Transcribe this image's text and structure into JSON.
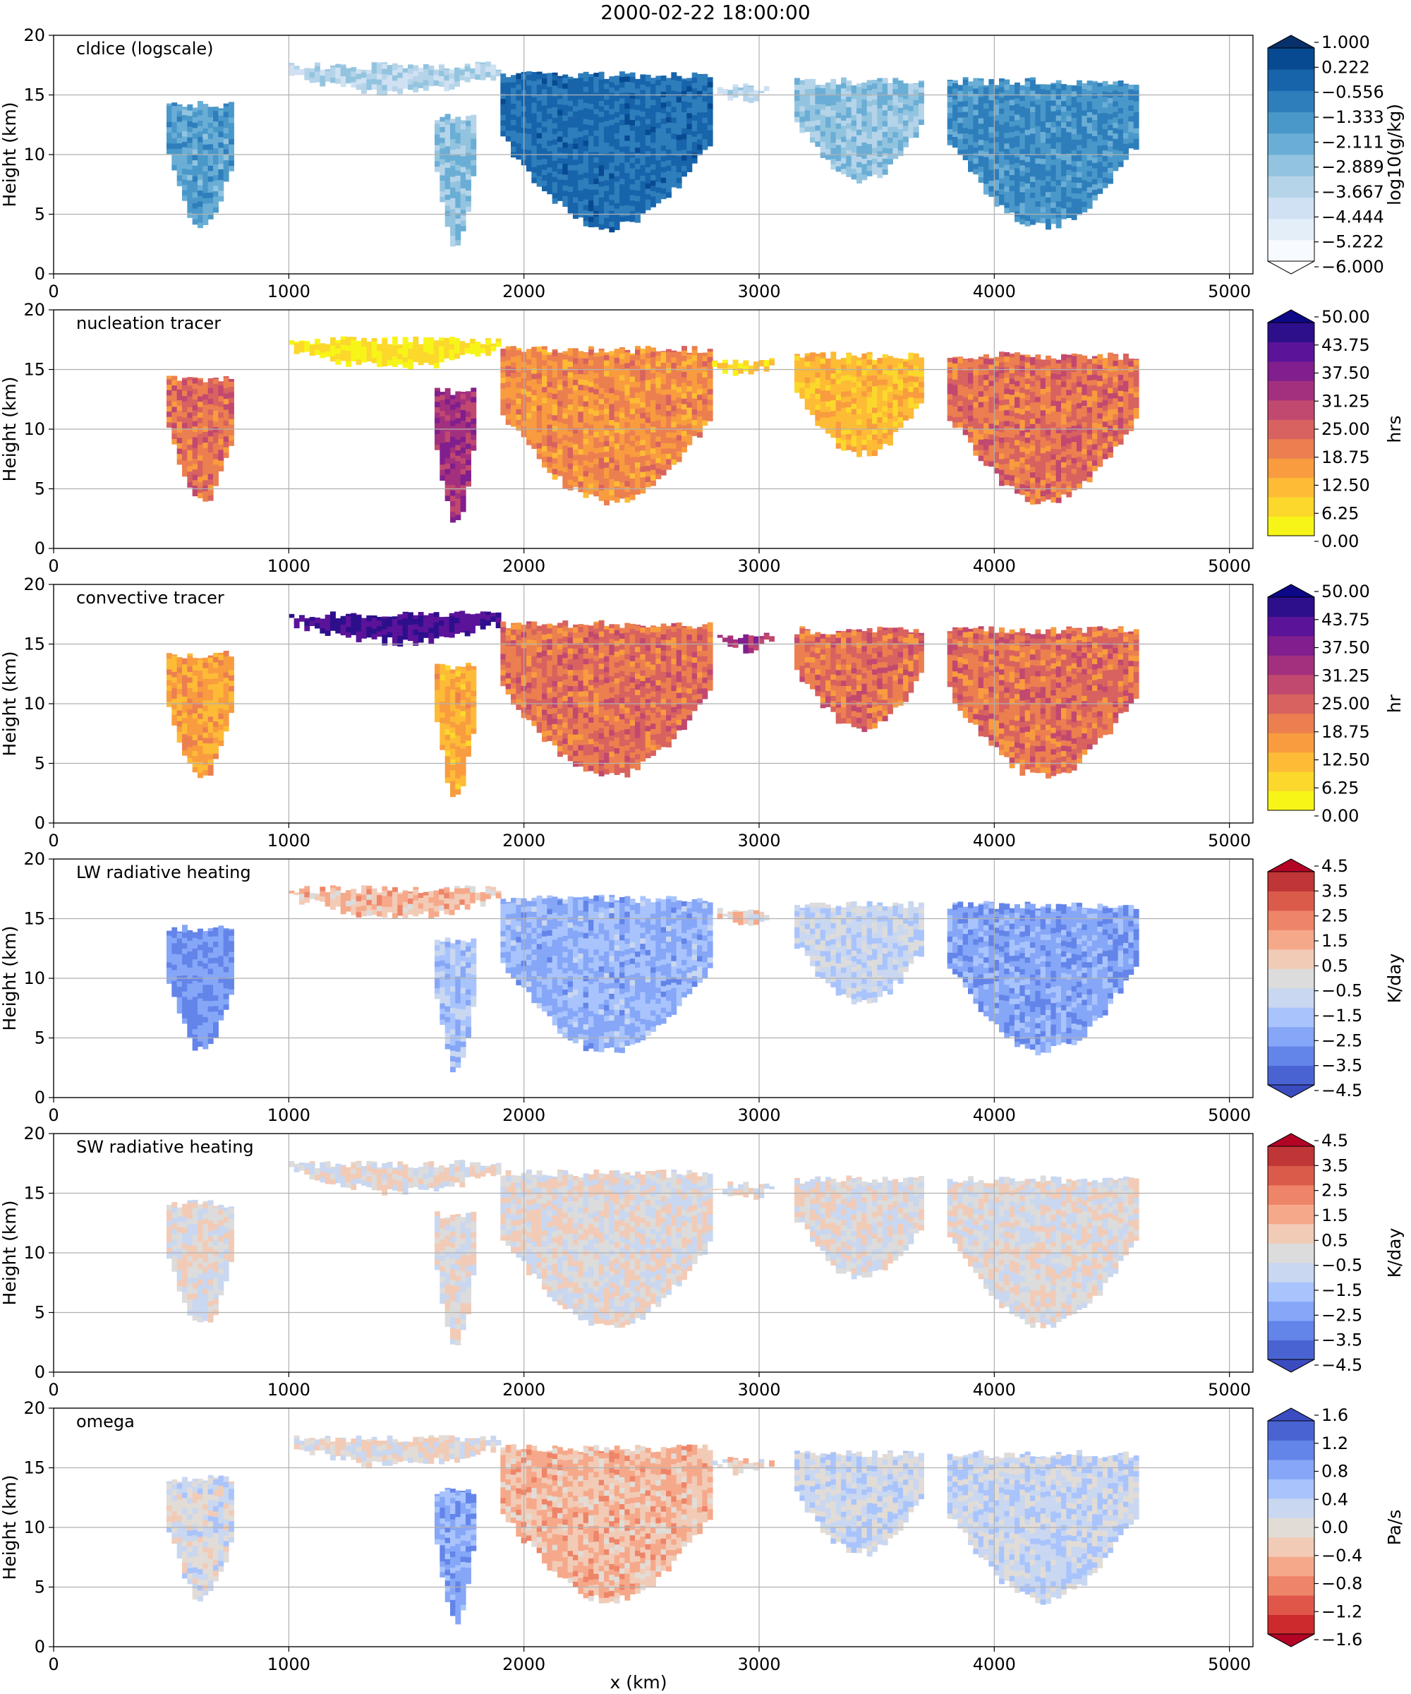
{
  "figure": {
    "title": "2000-02-22 18:00:00",
    "xlabel": "x (km)"
  },
  "chart_data": [
    {
      "type": "heatmap",
      "label": "cldice (logscale)",
      "xlabel": "",
      "ylabel": "Height (km)",
      "xlim": [
        0,
        5100
      ],
      "ylim": [
        0,
        20
      ],
      "xticks": [
        0,
        1000,
        2000,
        3000,
        4000,
        5000
      ],
      "yticks": [
        0,
        5,
        10,
        15,
        20
      ],
      "grid": true,
      "colorbar": {
        "label": "log10(g/kg)",
        "ticks": [
          "1.000",
          "0.222",
          "−0.556",
          "−1.333",
          "−2.111",
          "−2.889",
          "−3.667",
          "−4.444",
          "−5.222",
          "−6.000"
        ],
        "colors": [
          "#f7fbff",
          "#e3eef9",
          "#cfe1f2",
          "#b5d4e9",
          "#93c4df",
          "#6aaed6",
          "#4a98c9",
          "#2e7ebc",
          "#1764ab",
          "#084a91"
        ],
        "extend": "both",
        "over_color": "#08306b",
        "under_color": "#ffffff"
      },
      "clouds": [
        {
          "x": [
            480,
            760
          ],
          "y": [
            3.5,
            14.5
          ],
          "peak": 0.62
        },
        {
          "x": [
            1000,
            1900
          ],
          "y": [
            14.8,
            17.8
          ],
          "peak": 0.35
        },
        {
          "x": [
            1620,
            1780
          ],
          "y": [
            1.8,
            13.5
          ],
          "peak": 0.45
        },
        {
          "x": [
            1900,
            2800
          ],
          "y": [
            3.5,
            17.0
          ],
          "peak": 0.85
        },
        {
          "x": [
            2800,
            3050
          ],
          "y": [
            14.2,
            16.0
          ],
          "peak": 0.3
        },
        {
          "x": [
            3150,
            3700
          ],
          "y": [
            7.5,
            16.5
          ],
          "peak": 0.45
        },
        {
          "x": [
            3800,
            4600
          ],
          "y": [
            3.5,
            16.5
          ],
          "peak": 0.7
        }
      ]
    },
    {
      "type": "heatmap",
      "label": "nucleation tracer",
      "xlabel": "",
      "ylabel": "Height (km)",
      "xlim": [
        0,
        5100
      ],
      "ylim": [
        0,
        20
      ],
      "xticks": [
        0,
        1000,
        2000,
        3000,
        4000,
        5000
      ],
      "yticks": [
        0,
        5,
        10,
        15,
        20
      ],
      "grid": true,
      "colorbar": {
        "label": "hrs",
        "ticks": [
          "50.00",
          "43.75",
          "37.50",
          "31.25",
          "25.00",
          "18.75",
          "12.50",
          "6.25",
          "0.00"
        ],
        "colors": [
          "#f7f518",
          "#fbd82b",
          "#fdbb36",
          "#f89c3f",
          "#ec7f4f",
          "#d8625f",
          "#c1486f",
          "#a3307e",
          "#801f8d",
          "#5b139a",
          "#2d0f8c"
        ],
        "extend": "max",
        "over_color": "#0d0887"
      },
      "clouds": [
        {
          "x": [
            480,
            760
          ],
          "y": [
            3.5,
            14.5
          ],
          "peak": 0.45
        },
        {
          "x": [
            1000,
            1900
          ],
          "y": [
            14.8,
            17.8
          ],
          "peak": 0.05
        },
        {
          "x": [
            1620,
            1780
          ],
          "y": [
            1.8,
            13.5
          ],
          "peak": 0.7
        },
        {
          "x": [
            1900,
            2800
          ],
          "y": [
            3.5,
            17.0
          ],
          "peak": 0.35
        },
        {
          "x": [
            2800,
            3050
          ],
          "y": [
            14.2,
            16.0
          ],
          "peak": 0.1
        },
        {
          "x": [
            3150,
            3700
          ],
          "y": [
            7.5,
            16.5
          ],
          "peak": 0.2
        },
        {
          "x": [
            3800,
            4600
          ],
          "y": [
            3.5,
            16.5
          ],
          "peak": 0.45
        }
      ]
    },
    {
      "type": "heatmap",
      "label": "convective tracer",
      "xlabel": "",
      "ylabel": "Height (km)",
      "xlim": [
        0,
        5100
      ],
      "ylim": [
        0,
        20
      ],
      "xticks": [
        0,
        1000,
        2000,
        3000,
        4000,
        5000
      ],
      "yticks": [
        0,
        5,
        10,
        15,
        20
      ],
      "grid": true,
      "colorbar": {
        "label": "hr",
        "ticks": [
          "50.00",
          "43.75",
          "37.50",
          "31.25",
          "25.00",
          "18.75",
          "12.50",
          "6.25",
          "0.00"
        ],
        "colors": [
          "#f7f518",
          "#fbd82b",
          "#fdbb36",
          "#f89c3f",
          "#ec7f4f",
          "#d8625f",
          "#c1486f",
          "#a3307e",
          "#801f8d",
          "#5b139a",
          "#2d0f8c"
        ],
        "extend": "max",
        "over_color": "#0d0887"
      },
      "clouds": [
        {
          "x": [
            480,
            760
          ],
          "y": [
            3.5,
            14.5
          ],
          "peak": 0.28
        },
        {
          "x": [
            1000,
            1900
          ],
          "y": [
            14.8,
            17.8
          ],
          "peak": 0.95
        },
        {
          "x": [
            1620,
            1780
          ],
          "y": [
            1.8,
            13.5
          ],
          "peak": 0.25
        },
        {
          "x": [
            1900,
            2800
          ],
          "y": [
            3.5,
            17.0
          ],
          "peak": 0.45
        },
        {
          "x": [
            2800,
            3050
          ],
          "y": [
            14.2,
            16.0
          ],
          "peak": 0.7
        },
        {
          "x": [
            3150,
            3700
          ],
          "y": [
            7.5,
            16.5
          ],
          "peak": 0.45
        },
        {
          "x": [
            3800,
            4600
          ],
          "y": [
            3.5,
            16.5
          ],
          "peak": 0.45
        }
      ]
    },
    {
      "type": "heatmap",
      "label": "LW radiative heating",
      "xlabel": "",
      "ylabel": "Height (km)",
      "xlim": [
        0,
        5100
      ],
      "ylim": [
        0,
        20
      ],
      "xticks": [
        0,
        1000,
        2000,
        3000,
        4000,
        5000
      ],
      "yticks": [
        0,
        5,
        10,
        15,
        20
      ],
      "grid": true,
      "colorbar": {
        "label": "K/day",
        "ticks": [
          "4.5",
          "3.5",
          "2.5",
          "1.5",
          "0.5",
          "−0.5",
          "−1.5",
          "−2.5",
          "−3.5",
          "−4.5"
        ],
        "colors": [
          "#4a63d3",
          "#6384e9",
          "#86a6f7",
          "#a9c4fd",
          "#c9d7f0",
          "#dcdcdc",
          "#f2cbb7",
          "#f6a98a",
          "#ee8468",
          "#db5b4a",
          "#c03535"
        ],
        "extend": "both",
        "over_color": "#b40426",
        "under_color": "#3b4cc0"
      },
      "clouds": [
        {
          "x": [
            480,
            760
          ],
          "y": [
            3.5,
            14.5
          ],
          "peak": 0.15
        },
        {
          "x": [
            1000,
            1900
          ],
          "y": [
            14.8,
            17.8
          ],
          "peak": 0.65
        },
        {
          "x": [
            1620,
            1780
          ],
          "y": [
            1.8,
            13.5
          ],
          "peak": 0.3
        },
        {
          "x": [
            1900,
            2800
          ],
          "y": [
            3.5,
            17.0
          ],
          "peak": 0.25
        },
        {
          "x": [
            2800,
            3050
          ],
          "y": [
            14.2,
            16.0
          ],
          "peak": 0.55
        },
        {
          "x": [
            3150,
            3700
          ],
          "y": [
            7.5,
            16.5
          ],
          "peak": 0.4
        },
        {
          "x": [
            3800,
            4600
          ],
          "y": [
            3.5,
            16.5
          ],
          "peak": 0.2
        }
      ]
    },
    {
      "type": "heatmap",
      "label": "SW radiative heating",
      "xlabel": "",
      "ylabel": "Height (km)",
      "xlim": [
        0,
        5100
      ],
      "ylim": [
        0,
        20
      ],
      "xticks": [
        0,
        1000,
        2000,
        3000,
        4000,
        5000
      ],
      "yticks": [
        0,
        5,
        10,
        15,
        20
      ],
      "grid": true,
      "colorbar": {
        "label": "K/day",
        "ticks": [
          "4.5",
          "3.5",
          "2.5",
          "1.5",
          "0.5",
          "−0.5",
          "−1.5",
          "−2.5",
          "−3.5",
          "−4.5"
        ],
        "colors": [
          "#4a63d3",
          "#6384e9",
          "#86a6f7",
          "#a9c4fd",
          "#c9d7f0",
          "#dcdcdc",
          "#f2cbb7",
          "#f6a98a",
          "#ee8468",
          "#db5b4a",
          "#c03535"
        ],
        "extend": "both",
        "over_color": "#b40426",
        "under_color": "#3b4cc0"
      },
      "clouds": [
        {
          "x": [
            480,
            760
          ],
          "y": [
            3.5,
            14.5
          ],
          "peak": 0.5
        },
        {
          "x": [
            1000,
            1900
          ],
          "y": [
            14.8,
            17.8
          ],
          "peak": 0.5
        },
        {
          "x": [
            1620,
            1780
          ],
          "y": [
            1.8,
            13.5
          ],
          "peak": 0.5
        },
        {
          "x": [
            1900,
            2800
          ],
          "y": [
            3.5,
            17.0
          ],
          "peak": 0.5
        },
        {
          "x": [
            2800,
            3050
          ],
          "y": [
            14.2,
            16.0
          ],
          "peak": 0.5
        },
        {
          "x": [
            3150,
            3700
          ],
          "y": [
            7.5,
            16.5
          ],
          "peak": 0.5
        },
        {
          "x": [
            3800,
            4600
          ],
          "y": [
            3.5,
            16.5
          ],
          "peak": 0.5
        }
      ]
    },
    {
      "type": "heatmap",
      "label": "omega",
      "xlabel": "x (km)",
      "ylabel": "Height (km)",
      "xlim": [
        0,
        5100
      ],
      "ylim": [
        0,
        20
      ],
      "xticks": [
        0,
        1000,
        2000,
        3000,
        4000,
        5000
      ],
      "yticks": [
        0,
        5,
        10,
        15,
        20
      ],
      "grid": true,
      "colorbar": {
        "label": "Pa/s",
        "ticks": [
          "1.6",
          "1.2",
          "0.8",
          "0.4",
          "0.0",
          "−0.4",
          "−0.8",
          "−1.2",
          "−1.6"
        ],
        "colors": [
          "#cc2a2d",
          "#e0574a",
          "#ee8468",
          "#f6a98a",
          "#f2cbb7",
          "#e2dcd7",
          "#c9d7f0",
          "#a9c4fd",
          "#86a6f7",
          "#6384e9",
          "#4a63d3"
        ],
        "extend": "both",
        "over_color": "#3b4cc0",
        "under_color": "#b40426"
      },
      "clouds": [
        {
          "x": [
            480,
            760
          ],
          "y": [
            3.5,
            14.5
          ],
          "peak": 0.55
        },
        {
          "x": [
            1000,
            1900
          ],
          "y": [
            14.8,
            17.8
          ],
          "peak": 0.5
        },
        {
          "x": [
            1620,
            1780
          ],
          "y": [
            1.8,
            13.5
          ],
          "peak": 0.8
        },
        {
          "x": [
            1900,
            2800
          ],
          "y": [
            3.5,
            17.0
          ],
          "peak": 0.35
        },
        {
          "x": [
            2800,
            3050
          ],
          "y": [
            14.2,
            16.0
          ],
          "peak": 0.45
        },
        {
          "x": [
            3150,
            3700
          ],
          "y": [
            7.5,
            16.5
          ],
          "peak": 0.6
        },
        {
          "x": [
            3800,
            4600
          ],
          "y": [
            3.5,
            16.5
          ],
          "peak": 0.6
        }
      ]
    }
  ]
}
